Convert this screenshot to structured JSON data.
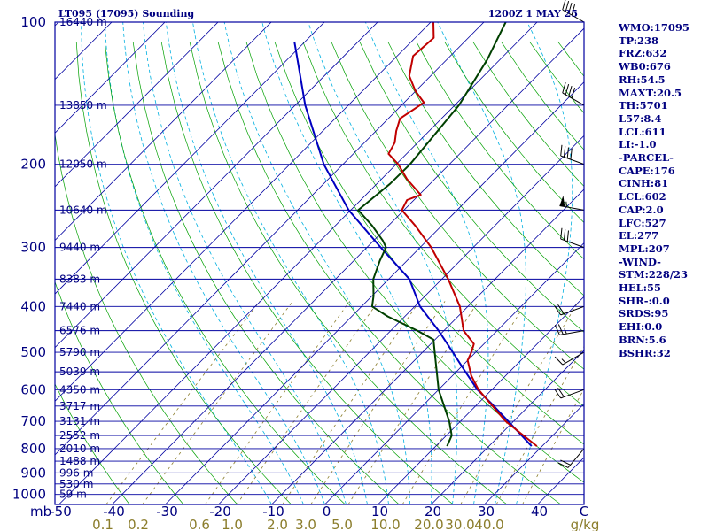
{
  "chart_data": {
    "type": "skew-t log-p sounding",
    "title_left": "LT095 (17095) Sounding",
    "title_right": "1200Z  1 MAY 25",
    "pressure_unit_label": "mb",
    "mixing_ratio_unit_label": "g/kg",
    "temperature_unit_label": "C",
    "pressure_ticks": [
      100,
      200,
      300,
      400,
      500,
      600,
      700,
      800,
      900,
      1000
    ],
    "height_labels": [
      {
        "p": 100,
        "label": "16440 m"
      },
      {
        "p": 150,
        "label": "13850 m"
      },
      {
        "p": 200,
        "label": "12050 m"
      },
      {
        "p": 250,
        "label": "10640 m"
      },
      {
        "p": 300,
        "label": "9440 m"
      },
      {
        "p": 350,
        "label": "8383 m"
      },
      {
        "p": 400,
        "label": "7440 m"
      },
      {
        "p": 450,
        "label": "6576 m"
      },
      {
        "p": 500,
        "label": "5790 m"
      },
      {
        "p": 550,
        "label": "5039 m"
      },
      {
        "p": 600,
        "label": "4350 m"
      },
      {
        "p": 650,
        "label": "3717 m"
      },
      {
        "p": 700,
        "label": "3131 m"
      },
      {
        "p": 750,
        "label": "2552 m"
      },
      {
        "p": 800,
        "label": "2010 m"
      },
      {
        "p": 850,
        "label": "1488 m"
      },
      {
        "p": 900,
        "label": "996 m"
      },
      {
        "p": 950,
        "label": "530 m"
      },
      {
        "p": 1000,
        "label": "59 m"
      }
    ],
    "temperature_ticks": [
      "-50",
      "-40",
      "-30",
      "-20",
      "-10",
      "0",
      "10",
      "20",
      "30",
      "40"
    ],
    "mixing_ratio_ticks": [
      "0.1",
      "0.2",
      "0.6",
      "1.0",
      "2.0",
      "3.0",
      "5.0",
      "10.0",
      "20.0",
      "30.0",
      "40.0"
    ],
    "temperature_profile": [
      {
        "p": 790,
        "t": 29.0
      },
      {
        "p": 700,
        "t": 18.5
      },
      {
        "p": 600,
        "t": 7.5
      },
      {
        "p": 560,
        "t": 3.5
      },
      {
        "p": 520,
        "t": 0.0
      },
      {
        "p": 500,
        "t": -0.8
      },
      {
        "p": 480,
        "t": -1.9
      },
      {
        "p": 450,
        "t": -6.3
      },
      {
        "p": 400,
        "t": -11.5
      },
      {
        "p": 350,
        "t": -18.8
      },
      {
        "p": 300,
        "t": -27.9
      },
      {
        "p": 270,
        "t": -34.9
      },
      {
        "p": 250,
        "t": -40.4
      },
      {
        "p": 238,
        "t": -41.3
      },
      {
        "p": 232,
        "t": -39.7
      },
      {
        "p": 215,
        "t": -45.2
      },
      {
        "p": 200,
        "t": -49.6
      },
      {
        "p": 190,
        "t": -53.4
      },
      {
        "p": 180,
        "t": -54.3
      },
      {
        "p": 170,
        "t": -56.2
      },
      {
        "p": 160,
        "t": -57.8
      },
      {
        "p": 148,
        "t": -56.3
      },
      {
        "p": 140,
        "t": -60.0
      },
      {
        "p": 130,
        "t": -64.0
      },
      {
        "p": 118,
        "t": -67.0
      },
      {
        "p": 108,
        "t": -66.5
      },
      {
        "p": 100,
        "t": -69.5
      }
    ],
    "dewpoint_profile": [
      {
        "p": 790,
        "td": 12.1
      },
      {
        "p": 750,
        "td": 11.0
      },
      {
        "p": 700,
        "td": 7.9
      },
      {
        "p": 600,
        "td": 0.0
      },
      {
        "p": 500,
        "td": -7.7
      },
      {
        "p": 470,
        "td": -10.3
      },
      {
        "p": 450,
        "td": -15.0
      },
      {
        "p": 420,
        "td": -23.2
      },
      {
        "p": 400,
        "td": -28.0
      },
      {
        "p": 380,
        "td": -29.7
      },
      {
        "p": 350,
        "td": -32.9
      },
      {
        "p": 320,
        "td": -35.1
      },
      {
        "p": 300,
        "td": -36.4
      },
      {
        "p": 290,
        "td": -38.3
      },
      {
        "p": 270,
        "td": -43.0
      },
      {
        "p": 250,
        "td": -48.6
      },
      {
        "p": 220,
        "td": -47.5
      },
      {
        "p": 200,
        "td": -47.4
      },
      {
        "p": 150,
        "td": -49.2
      },
      {
        "p": 120,
        "td": -52.4
      },
      {
        "p": 100,
        "td": -55.9
      }
    ],
    "parcel_path": [
      {
        "p": 790,
        "t": 28.0
      },
      {
        "p": 700,
        "t": 19.0
      },
      {
        "p": 640,
        "t": 12.3
      },
      {
        "p": 600,
        "t": 7.3
      },
      {
        "p": 550,
        "t": 1.7
      },
      {
        "p": 500,
        "t": -4.3
      },
      {
        "p": 450,
        "t": -11.0
      },
      {
        "p": 400,
        "t": -19.0
      },
      {
        "p": 350,
        "t": -26.1
      },
      {
        "p": 300,
        "t": -37.4
      },
      {
        "p": 250,
        "t": -50.4
      },
      {
        "p": 200,
        "t": -63.6
      },
      {
        "p": 150,
        "t": -78.1
      },
      {
        "p": 130,
        "t": -84.5
      },
      {
        "p": 110,
        "t": -92.0
      }
    ],
    "wind_barbs": [
      {
        "p": 100,
        "dir": 300,
        "spd": 40
      },
      {
        "p": 150,
        "dir": 300,
        "spd": 40
      },
      {
        "p": 200,
        "dir": 290,
        "spd": 40
      },
      {
        "p": 250,
        "dir": 280,
        "spd": 55
      },
      {
        "p": 300,
        "dir": 290,
        "spd": 30
      },
      {
        "p": 400,
        "dir": 250,
        "spd": 20
      },
      {
        "p": 450,
        "dir": 260,
        "spd": 25
      },
      {
        "p": 500,
        "dir": 240,
        "spd": 15
      },
      {
        "p": 600,
        "dir": 250,
        "spd": 20
      },
      {
        "p": 800,
        "dir": 220,
        "spd": 20
      }
    ],
    "colors": {
      "isobar": "#0000a0",
      "isotherm": "#0000a0",
      "dry_adiabat": "#00a000",
      "moist_adiabat": "#00b0e0",
      "mixing_ratio": "#8b7d2c",
      "temperature": "#c00000",
      "dewpoint": "#004000",
      "parcel": "#0000c0",
      "wind": "#000000",
      "frame": "#0000a0"
    }
  },
  "indices": [
    "WMO:17095",
    "TP:238",
    "FRZ:632",
    "WB0:676",
    "RH:54.5",
    "MAXT:20.5",
    "TH:5701",
    "L57:8.4",
    "LCL:611",
    "LI:-1.0",
    "-PARCEL-",
    "CAPE:176",
    "CINH:81",
    "LCL:602",
    "CAP:2.0",
    "LFC:527",
    "EL:277",
    "MPL:207",
    "-WIND-",
    "STM:228/23",
    "HEL:55",
    "SHR-:0.0",
    "SRDS:95",
    "EHI:0.0",
    "BRN:5.6",
    "BSHR:32"
  ]
}
